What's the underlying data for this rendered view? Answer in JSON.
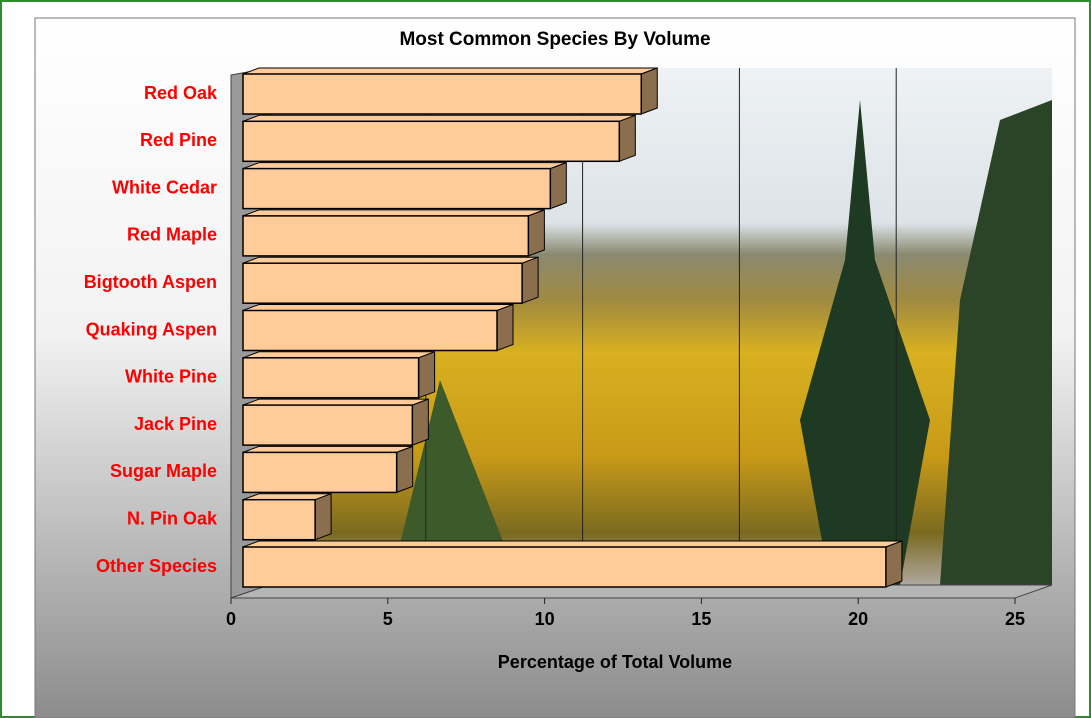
{
  "chart_data": {
    "type": "bar",
    "orientation": "horizontal",
    "title": "Most Common Species By Volume",
    "xlabel": "Percentage of Total Volume",
    "categories": [
      "Red Oak",
      "Red Pine",
      "White Cedar",
      "Red Maple",
      "Bigtooth Aspen",
      "Quaking Aspen",
      "White Pine",
      "Jack Pine",
      "Sugar Maple",
      "N. Pin Oak",
      "Other Species"
    ],
    "values": [
      12.7,
      12.0,
      9.8,
      9.1,
      8.9,
      8.1,
      5.6,
      5.4,
      4.9,
      2.3,
      20.5
    ],
    "color": "#ffcc99",
    "side_color": "#8b6e4e",
    "label_color": "#ff0000",
    "xlim": [
      0,
      25
    ],
    "xticks": [
      0,
      5,
      10,
      15,
      20,
      25
    ],
    "grid": true
  }
}
